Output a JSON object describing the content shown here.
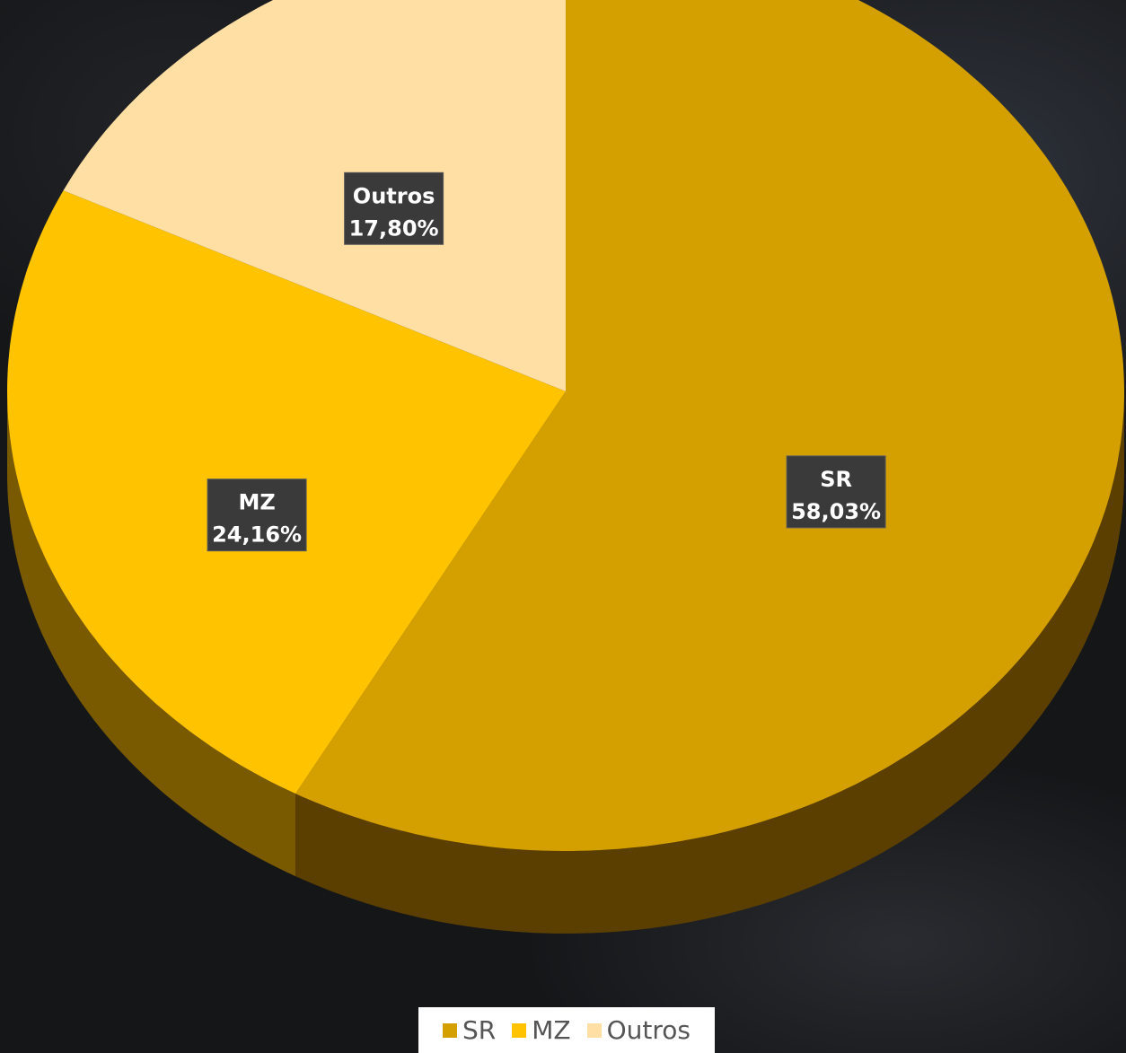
{
  "chart_data": {
    "type": "pie",
    "title": "",
    "slices": [
      {
        "name": "SR",
        "value": 58.03,
        "label_name": "SR",
        "label_value": "58,03%",
        "color": "#D4A000",
        "side_color": "#5A3F00"
      },
      {
        "name": "MZ",
        "value": 24.16,
        "label_name": "MZ",
        "label_value": "24,16%",
        "color": "#FFC300",
        "side_color": "#7A5A00"
      },
      {
        "name": "Outros",
        "value": 17.8,
        "label_name": "Outros",
        "label_value": "17,80%",
        "color": "#FFDFA3",
        "side_color": "#8A7040"
      }
    ],
    "start_angle_deg": 0,
    "direction": "clockwise",
    "style": "3d",
    "legend_position": "bottom"
  },
  "legend": {
    "items": [
      {
        "label": "SR",
        "color": "#D4A000"
      },
      {
        "label": "MZ",
        "color": "#FFC300"
      },
      {
        "label": "Outros",
        "color": "#FFDFA3"
      }
    ]
  }
}
